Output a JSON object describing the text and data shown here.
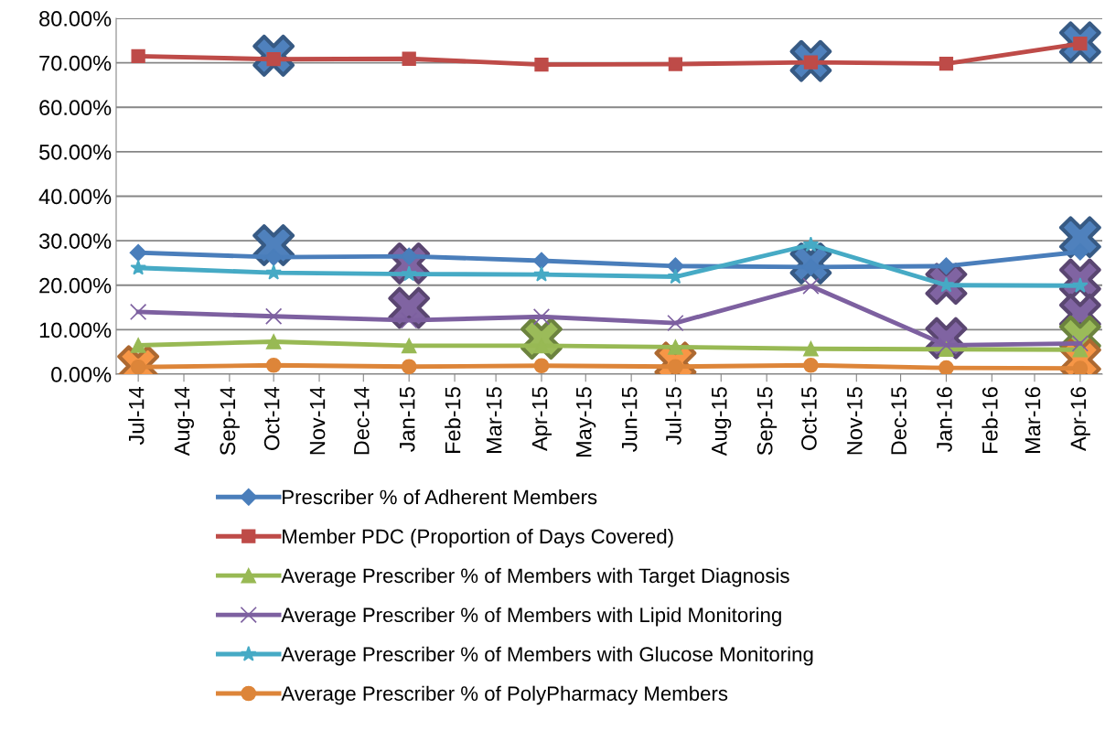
{
  "chart_data": {
    "type": "line",
    "x": [
      "2014-07",
      "2014-10",
      "2015-01",
      "2015-04",
      "2015-07",
      "2015-10",
      "2016-01",
      "2016-04"
    ],
    "xlim": [
      "2014-06-16",
      "2016-04-16"
    ],
    "xticks": [
      {
        "value": "2014-07",
        "label": "Jul-14"
      },
      {
        "value": "2014-08",
        "label": "Aug-14"
      },
      {
        "value": "2014-09",
        "label": "Sep-14"
      },
      {
        "value": "2014-10",
        "label": "Oct-14"
      },
      {
        "value": "2014-11",
        "label": "Nov-14"
      },
      {
        "value": "2014-12",
        "label": "Dec-14"
      },
      {
        "value": "2015-01",
        "label": "Jan-15"
      },
      {
        "value": "2015-02",
        "label": "Feb-15"
      },
      {
        "value": "2015-03",
        "label": "Mar-15"
      },
      {
        "value": "2015-04",
        "label": "Apr-15"
      },
      {
        "value": "2015-05",
        "label": "May-15"
      },
      {
        "value": "2015-06",
        "label": "Jun-15"
      },
      {
        "value": "2015-07",
        "label": "Jul-15"
      },
      {
        "value": "2015-08",
        "label": "Aug-15"
      },
      {
        "value": "2015-09",
        "label": "Sep-15"
      },
      {
        "value": "2015-10",
        "label": "Oct-15"
      },
      {
        "value": "2015-11",
        "label": "Nov-15"
      },
      {
        "value": "2015-12",
        "label": "Dec-15"
      },
      {
        "value": "2016-01",
        "label": "Jan-16"
      },
      {
        "value": "2016-02",
        "label": "Feb-16"
      },
      {
        "value": "2016-03",
        "label": "Mar-16"
      },
      {
        "value": "2016-04",
        "label": "Apr-16"
      }
    ],
    "ylim": [
      0,
      80
    ],
    "yticks": [
      {
        "value": 0,
        "label": "0.00%"
      },
      {
        "value": 10,
        "label": "10.00%"
      },
      {
        "value": 20,
        "label": "20.00%"
      },
      {
        "value": 30,
        "label": "30.00%"
      },
      {
        "value": 40,
        "label": "40.00%"
      },
      {
        "value": 50,
        "label": "50.00%"
      },
      {
        "value": 60,
        "label": "60.00%"
      },
      {
        "value": 70,
        "label": "70.00%"
      },
      {
        "value": 80,
        "label": "80.00%"
      }
    ],
    "grid": "y",
    "legend": "bottom",
    "series": [
      {
        "name": "Prescriber % of Adherent Members",
        "color": "#4a7ebb",
        "marker": "diamond",
        "values": [
          27.3,
          26.3,
          26.5,
          25.5,
          24.3,
          24.1,
          24.3,
          27.5
        ]
      },
      {
        "name": "Member PDC (Proportion of Days Covered)",
        "color": "#be4b48",
        "marker": "square",
        "values": [
          71.5,
          70.8,
          70.9,
          69.6,
          69.7,
          70.1,
          69.8,
          74.3
        ]
      },
      {
        "name": "Average Prescriber % of Members with Target Diagnosis",
        "color": "#98b954",
        "marker": "triangle",
        "values": [
          6.5,
          7.3,
          6.4,
          6.4,
          6.1,
          5.7,
          5.6,
          5.5
        ]
      },
      {
        "name": "Average Prescriber % of Members with Lipid Monitoring",
        "color": "#7d60a0",
        "marker": "cross",
        "values": [
          14.0,
          13.0,
          12.1,
          12.9,
          11.5,
          19.8,
          6.5,
          6.9
        ]
      },
      {
        "name": "Average Prescriber % of Members with Glucose Monitoring",
        "color": "#46aac5",
        "marker": "star",
        "values": [
          23.9,
          22.8,
          22.5,
          22.4,
          21.9,
          29.1,
          20.0,
          19.9
        ]
      },
      {
        "name": "Average Prescriber % of PolyPharmacy Members",
        "color": "#dd8539",
        "marker": "circle",
        "values": [
          1.6,
          2.0,
          1.7,
          1.9,
          1.7,
          2.0,
          1.4,
          1.3
        ]
      },
      {
        "type": "scatter",
        "color": "#4f81bd",
        "marker": "cross",
        "x": [
          "2014-10",
          "2014-10",
          "2015-10",
          "2015-10",
          "2016-04",
          "2016-04"
        ],
        "values": [
          71.6,
          29.0,
          70.4,
          24.9,
          74.6,
          30.8
        ]
      },
      {
        "type": "scatter",
        "color": "#8064a2",
        "marker": "cross",
        "x": [
          "2015-01",
          "2015-01",
          "2016-01",
          "2016-01",
          "2016-04",
          "2016-04"
        ],
        "values": [
          24.9,
          14.9,
          20.3,
          8.1,
          21.3,
          13.4
        ]
      },
      {
        "type": "scatter",
        "color": "#9bbb59",
        "marker": "cross",
        "x": [
          "2015-04",
          "2016-04"
        ],
        "values": [
          8.0,
          8.5
        ]
      },
      {
        "type": "scatter",
        "color": "#f79646",
        "marker": "cross",
        "x": [
          "2014-07",
          "2015-07",
          "2016-04"
        ],
        "values": [
          1.8,
          2.6,
          3.3
        ]
      }
    ]
  }
}
